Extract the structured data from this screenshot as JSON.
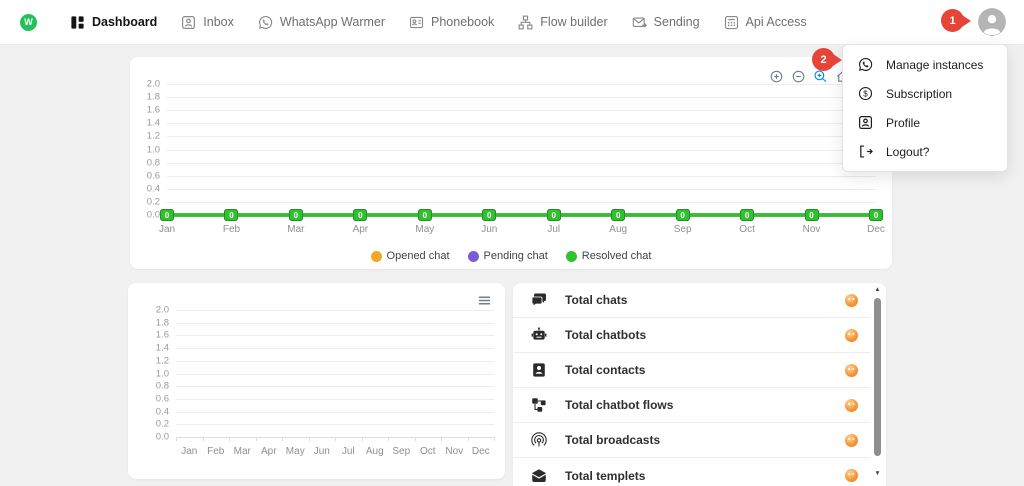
{
  "nav": {
    "logo_text": "W",
    "items": [
      {
        "label": "Dashboard",
        "icon": "dashboard-icon",
        "active": true
      },
      {
        "label": "Inbox",
        "icon": "inbox-icon",
        "active": false
      },
      {
        "label": "WhatsApp Warmer",
        "icon": "whatsapp-icon",
        "active": false
      },
      {
        "label": "Phonebook",
        "icon": "phonebook-icon",
        "active": false
      },
      {
        "label": "Flow builder",
        "icon": "flow-builder-icon",
        "active": false
      },
      {
        "label": "Sending",
        "icon": "sending-icon",
        "active": false
      },
      {
        "label": "Api Access",
        "icon": "api-icon",
        "active": false
      }
    ]
  },
  "annotations": {
    "badge_on_avatar": "1",
    "badge_on_menu": "2"
  },
  "user_menu": {
    "items": [
      {
        "label": "Manage instances",
        "icon": "whatsapp-icon"
      },
      {
        "label": "Subscription",
        "icon": "subscription-icon"
      },
      {
        "label": "Profile",
        "icon": "profile-icon"
      },
      {
        "label": "Logout?",
        "icon": "logout-icon"
      }
    ]
  },
  "chart_data": [
    {
      "type": "line",
      "title": "",
      "categories": [
        "Jan",
        "Feb",
        "Mar",
        "Apr",
        "May",
        "Jun",
        "Jul",
        "Aug",
        "Sep",
        "Oct",
        "Nov",
        "Dec"
      ],
      "series": [
        {
          "name": "Opened chat",
          "color": "#f5a623",
          "values": [
            0,
            0,
            0,
            0,
            0,
            0,
            0,
            0,
            0,
            0,
            0,
            0
          ]
        },
        {
          "name": "Pending chat",
          "color": "#7b5cd6",
          "values": [
            0,
            0,
            0,
            0,
            0,
            0,
            0,
            0,
            0,
            0,
            0,
            0
          ]
        },
        {
          "name": "Resolved chat",
          "color": "#2fc22f",
          "values": [
            0,
            0,
            0,
            0,
            0,
            0,
            0,
            0,
            0,
            0,
            0,
            0
          ]
        }
      ],
      "ylim": [
        0,
        2
      ],
      "yticks": [
        "2.0",
        "1.8",
        "1.6",
        "1.4",
        "1.2",
        "1.0",
        "0.8",
        "0.6",
        "0.4",
        "0.2",
        "0.0"
      ],
      "show_data_labels": true,
      "legend_position": "bottom",
      "grid": true,
      "x_label_align": "edge",
      "toolbar": [
        "zoom-in-icon",
        "zoom-out-icon",
        "selection-zoom-icon",
        "home-icon"
      ]
    },
    {
      "type": "line",
      "title": "",
      "categories": [
        "Jan",
        "Feb",
        "Mar",
        "Apr",
        "May",
        "Jun",
        "Jul",
        "Aug",
        "Sep",
        "Oct",
        "Nov",
        "Dec"
      ],
      "series": [],
      "ylim": [
        0,
        2
      ],
      "yticks": [
        "2.0",
        "1.8",
        "1.6",
        "1.4",
        "1.2",
        "1.0",
        "0.8",
        "0.6",
        "0.4",
        "0.2",
        "0.0"
      ],
      "show_data_labels": false,
      "legend_position": "none",
      "grid": true,
      "x_label_align": "center",
      "x_ticks": true
    }
  ],
  "stats": {
    "items": [
      {
        "label": "Total chats",
        "icon": "chats-icon",
        "value_icon": "loading-emoji-icon"
      },
      {
        "label": "Total chatbots",
        "icon": "chatbot-icon",
        "value_icon": "loading-emoji-icon"
      },
      {
        "label": "Total contacts",
        "icon": "contacts-icon",
        "value_icon": "loading-emoji-icon"
      },
      {
        "label": "Total chatbot flows",
        "icon": "flows-icon",
        "value_icon": "loading-emoji-icon"
      },
      {
        "label": "Total broadcasts",
        "icon": "broadcast-icon",
        "value_icon": "loading-emoji-icon"
      },
      {
        "label": "Total templets",
        "icon": "template-icon",
        "value_icon": "loading-emoji-icon"
      }
    ]
  },
  "colors": {
    "brand_green": "#23c05b",
    "badge_red": "#e64438",
    "series_opened": "#f5a623",
    "series_pending": "#7b5cd6",
    "series_resolved": "#2fc22f",
    "toolbar_active_blue": "#008ffb"
  }
}
